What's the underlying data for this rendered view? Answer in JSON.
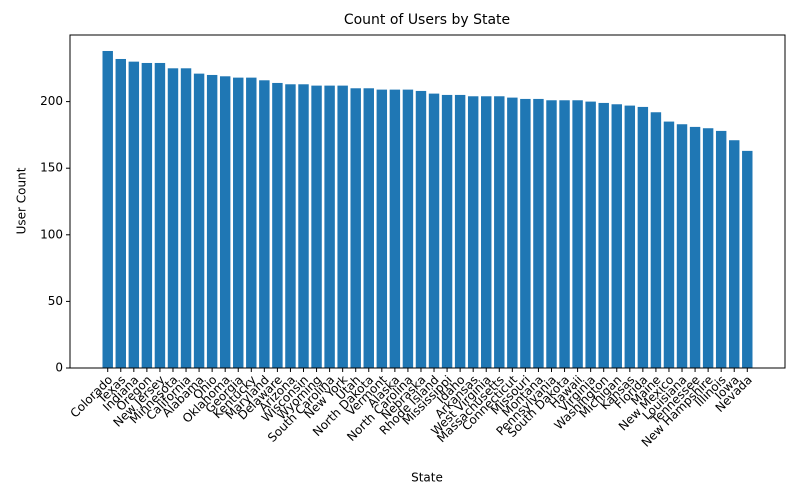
{
  "chart_data": {
    "type": "bar",
    "title": "Count of Users by State",
    "x_label": "State",
    "y_label": "User Count",
    "categories": [
      "Colorado",
      "Texas",
      "Indiana",
      "Oregon",
      "New Jersey",
      "Minnesota",
      "California",
      "Alabama",
      "Ohio",
      "Oklahoma",
      "Georgia",
      "Kentucky",
      "Maryland",
      "Delaware",
      "Arizona",
      "Wisconsin",
      "Wyoming",
      "South Carolina",
      "New York",
      "Utah",
      "North Dakota",
      "Vermont",
      "Alaska",
      "North Carolina",
      "Nebraska",
      "Rhode Island",
      "Mississippi",
      "Idaho",
      "Arkansas",
      "West Virginia",
      "Massachusetts",
      "Connecticut",
      "Missouri",
      "Montana",
      "Pennsylvania",
      "South Dakota",
      "Hawaii",
      "Virginia",
      "Washington",
      "Michigan",
      "Kansas",
      "Florida",
      "Maine",
      "New Mexico",
      "Louisiana",
      "Tennessee",
      "New Hampshire",
      "Illinois",
      "Iowa",
      "Nevada"
    ],
    "values": [
      238,
      232,
      230,
      229,
      229,
      225,
      225,
      221,
      220,
      219,
      218,
      218,
      216,
      214,
      213,
      213,
      212,
      212,
      212,
      210,
      210,
      209,
      209,
      209,
      208,
      206,
      205,
      205,
      204,
      204,
      204,
      203,
      202,
      202,
      201,
      201,
      201,
      200,
      199,
      198,
      197,
      196,
      192,
      185,
      183,
      181,
      180,
      178,
      171,
      163
    ],
    "color": "#1f77b4",
    "ylim": [
      0,
      250
    ],
    "yticks": [
      0,
      50,
      100,
      150,
      200
    ],
    "grid": false
  }
}
